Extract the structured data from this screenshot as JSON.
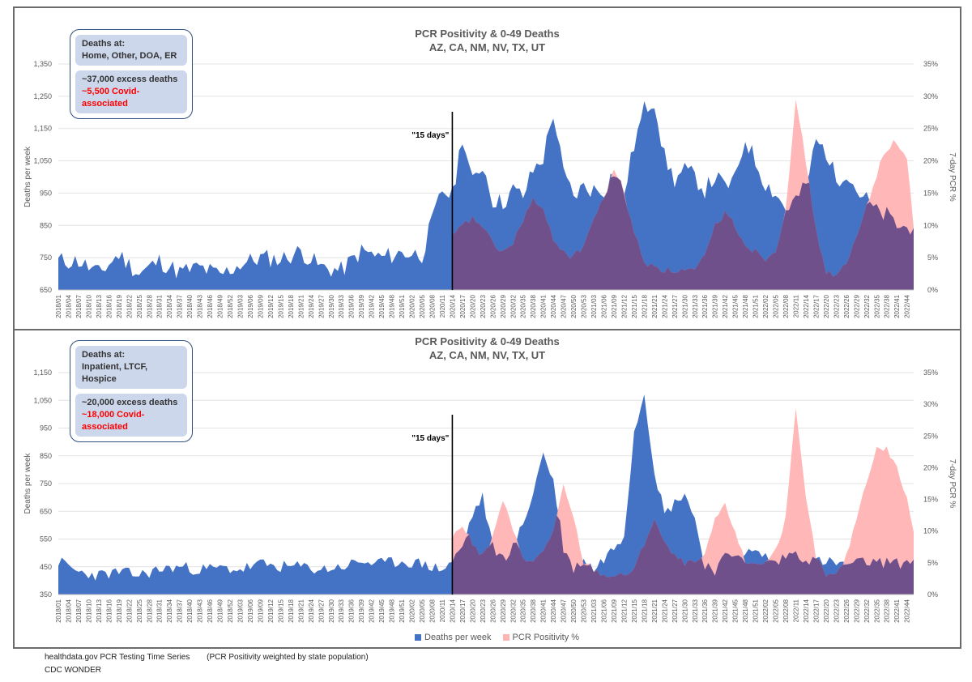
{
  "charts": [
    {
      "id": "top",
      "title": "PCR Positivity & 0-49 Deaths",
      "subtitle": "AZ, CA, NM, NV, TX, UT",
      "ylabel_left": "Deaths per week",
      "ylabel_right": "7-day PCR %",
      "annotation": "\"15 days\"",
      "info": {
        "heading": "Deaths at:",
        "places": "Home, Other, DOA, ER",
        "excess": "~37,000 excess deaths",
        "covid": "~5,500 Covid-associated"
      },
      "yticks_left": [
        "650",
        "750",
        "850",
        "950",
        "1,050",
        "1,150",
        "1,250",
        "1,350"
      ],
      "yticks_right": [
        "0%",
        "5%",
        "10%",
        "15%",
        "20%",
        "25%",
        "30%",
        "35%"
      ]
    },
    {
      "id": "bottom",
      "title": "PCR Positivity & 0-49 Deaths",
      "subtitle": "AZ, CA, NM, NV, TX, UT",
      "ylabel_left": "Deaths per week",
      "ylabel_right": "7-day PCR %",
      "annotation": "\"15 days\"",
      "info": {
        "heading": "Deaths at:",
        "places": "Inpatient, LTCF, Hospice",
        "excess": "~20,000 excess deaths",
        "covid": "~18,000 Covid-associated"
      },
      "yticks_left": [
        "350",
        "450",
        "550",
        "650",
        "750",
        "850",
        "950",
        "1,050",
        "1,150"
      ],
      "yticks_right": [
        "0%",
        "5%",
        "10%",
        "15%",
        "20%",
        "25%",
        "30%",
        "35%"
      ]
    }
  ],
  "legend": {
    "deaths": "Deaths per week",
    "pcr": "PCR Positivity %"
  },
  "footer": {
    "source1": "healthdata.gov PCR Testing Time Series",
    "note": "(PCR Positivity weighted by state population)",
    "source2": "CDC WONDER"
  },
  "colors": {
    "deaths": "#4472c4",
    "pcr": "#ff9999",
    "overlap": "#70508a"
  },
  "chart_data": [
    {
      "type": "area",
      "title": "PCR Positivity & 0-49 Deaths",
      "subtitle": "AZ, CA, NM, NV, TX, UT",
      "ylabel": "Deaths per week",
      "y2label": "7-day PCR %",
      "ylim": [
        650,
        1350
      ],
      "y2lim": [
        0,
        35
      ],
      "x_tick_labels": [
        "2018/01",
        "2018/04",
        "2018/07",
        "2018/10",
        "2018/13",
        "2018/16",
        "2018/19",
        "2018/22",
        "2018/25",
        "2018/28",
        "2018/31",
        "2018/34",
        "2018/37",
        "2018/40",
        "2018/43",
        "2018/46",
        "2018/49",
        "2018/52",
        "2019/03",
        "2019/06",
        "2019/09",
        "2019/12",
        "2019/15",
        "2019/18",
        "2019/21",
        "2019/24",
        "2019/27",
        "2019/30",
        "2019/33",
        "2019/36",
        "2019/39",
        "2019/42",
        "2019/45",
        "2019/48",
        "2019/51",
        "2020/02",
        "2020/05",
        "2020/08",
        "2020/11",
        "2020/14",
        "2020/17",
        "2020/20",
        "2020/23",
        "2020/26",
        "2020/29",
        "2020/32",
        "2020/35",
        "2020/38",
        "2020/41",
        "2020/44",
        "2020/47",
        "2020/50",
        "2020/53",
        "2021/03",
        "2021/06",
        "2021/09",
        "2021/12",
        "2021/15",
        "2021/18",
        "2021/21",
        "2021/24",
        "2021/27",
        "2021/30",
        "2021/33",
        "2021/36",
        "2021/39",
        "2021/42",
        "2021/45",
        "2021/48",
        "2021/51",
        "2022/02",
        "2022/05",
        "2022/08",
        "2022/11",
        "2022/14",
        "2022/17",
        "2022/20",
        "2022/23",
        "2022/26",
        "2022/29",
        "2022/32",
        "2022/35",
        "2022/38",
        "2022/41",
        "2022/44"
      ],
      "series": [
        {
          "name": "Deaths per week",
          "axis": "left",
          "x_index": [
            0,
            6,
            12,
            18,
            24,
            30,
            36,
            42,
            48,
            54,
            60,
            66,
            72,
            78,
            84,
            90,
            96,
            102,
            108,
            114,
            117,
            120,
            123,
            126,
            129,
            132,
            135,
            138,
            141,
            144,
            147,
            150,
            153,
            156,
            159,
            162,
            165,
            168,
            171,
            174,
            177,
            180,
            183,
            186,
            189,
            192,
            195,
            198,
            201,
            204,
            207,
            210,
            213,
            216,
            219,
            222,
            225,
            228,
            231,
            234,
            237,
            240,
            243,
            246,
            249,
            252,
            254
          ],
          "values": [
            740,
            740,
            700,
            760,
            700,
            740,
            705,
            720,
            695,
            730,
            750,
            745,
            770,
            720,
            710,
            770,
            750,
            765,
            760,
            960,
            940,
            1130,
            980,
            1040,
            930,
            920,
            960,
            940,
            1020,
            1060,
            1200,
            1010,
            940,
            970,
            960,
            960,
            1020,
            950,
            1100,
            1210,
            1240,
            1060,
            990,
            1020,
            1000,
            960,
            1000,
            970,
            990,
            1120,
            1050,
            980,
            950,
            900,
            930,
            970,
            1110,
            1080,
            990,
            1020,
            960,
            930,
            890,
            880,
            850,
            840,
            860
          ]
        },
        {
          "name": "PCR Positivity %",
          "axis": "right",
          "x_index": [
            117,
            120,
            123,
            126,
            129,
            132,
            135,
            138,
            141,
            144,
            147,
            150,
            153,
            156,
            159,
            162,
            165,
            168,
            171,
            174,
            177,
            180,
            183,
            186,
            189,
            192,
            195,
            198,
            201,
            204,
            207,
            210,
            213,
            216,
            219,
            222,
            225,
            228,
            231,
            234,
            237,
            240,
            243,
            246,
            249,
            252,
            254
          ],
          "values": [
            8,
            10,
            11,
            10,
            7,
            6,
            7,
            11,
            14,
            12,
            8,
            6,
            5,
            7,
            11,
            14,
            19,
            15,
            9,
            4,
            4,
            3,
            3,
            3,
            3,
            5,
            10,
            12,
            10,
            7,
            6,
            5,
            6,
            13,
            29,
            20,
            9,
            3,
            2,
            4,
            8,
            13,
            18,
            22,
            23,
            20,
            10
          ]
        }
      ]
    },
    {
      "type": "area",
      "title": "PCR Positivity & 0-49 Deaths",
      "subtitle": "AZ, CA, NM, NV, TX, UT",
      "ylabel": "Deaths per week",
      "y2label": "7-day PCR %",
      "ylim": [
        350,
        1150
      ],
      "y2lim": [
        0,
        35
      ],
      "x_tick_labels": [
        "2018/01",
        "2018/04",
        "2018/07",
        "2018/10",
        "2018/13",
        "2018/16",
        "2018/19",
        "2018/22",
        "2018/25",
        "2018/28",
        "2018/31",
        "2018/34",
        "2018/37",
        "2018/40",
        "2018/43",
        "2018/46",
        "2018/49",
        "2018/52",
        "2019/03",
        "2019/06",
        "2019/09",
        "2019/12",
        "2019/15",
        "2019/18",
        "2019/21",
        "2019/24",
        "2019/27",
        "2019/30",
        "2019/33",
        "2019/36",
        "2019/39",
        "2019/42",
        "2019/45",
        "2019/48",
        "2019/51",
        "2020/02",
        "2020/05",
        "2020/08",
        "2020/11",
        "2020/14",
        "2020/17",
        "2020/20",
        "2020/23",
        "2020/26",
        "2020/29",
        "2020/32",
        "2020/35",
        "2020/38",
        "2020/41",
        "2020/44",
        "2020/47",
        "2020/50",
        "2020/53",
        "2021/03",
        "2021/06",
        "2021/09",
        "2021/12",
        "2021/15",
        "2021/18",
        "2021/21",
        "2021/24",
        "2021/27",
        "2021/30",
        "2021/33",
        "2021/36",
        "2021/39",
        "2021/42",
        "2021/45",
        "2021/48",
        "2021/51",
        "2022/02",
        "2022/05",
        "2022/08",
        "2022/11",
        "2022/14",
        "2022/17",
        "2022/20",
        "2022/23",
        "2022/26",
        "2022/29",
        "2022/32",
        "2022/35",
        "2022/38",
        "2022/41",
        "2022/44"
      ],
      "series": [
        {
          "name": "Deaths per week",
          "axis": "left",
          "x_index": [
            0,
            6,
            12,
            18,
            24,
            30,
            36,
            42,
            48,
            54,
            60,
            66,
            72,
            78,
            84,
            90,
            96,
            102,
            108,
            114,
            117,
            120,
            123,
            126,
            129,
            132,
            135,
            138,
            141,
            144,
            147,
            150,
            153,
            156,
            159,
            162,
            165,
            168,
            171,
            174,
            177,
            180,
            183,
            186,
            189,
            192,
            195,
            198,
            201,
            204,
            207,
            210,
            213,
            216,
            219,
            222,
            225,
            228,
            231,
            234,
            237,
            240,
            243,
            246,
            249,
            252,
            254
          ],
          "values": [
            470,
            430,
            420,
            430,
            420,
            440,
            450,
            440,
            445,
            440,
            460,
            450,
            450,
            440,
            450,
            470,
            460,
            470,
            460,
            440,
            470,
            520,
            640,
            700,
            520,
            480,
            520,
            600,
            720,
            860,
            760,
            520,
            440,
            480,
            440,
            480,
            520,
            570,
            940,
            1080,
            800,
            640,
            680,
            720,
            620,
            460,
            440,
            480,
            500,
            500,
            500,
            490,
            460,
            490,
            500,
            480,
            470,
            470,
            460,
            460,
            460,
            470,
            460,
            470,
            460,
            470,
            470
          ]
        },
        {
          "name": "PCR Positivity %",
          "axis": "right",
          "x_index": [
            117,
            120,
            123,
            126,
            129,
            132,
            135,
            138,
            141,
            144,
            147,
            150,
            153,
            156,
            159,
            162,
            165,
            168,
            171,
            174,
            177,
            180,
            183,
            186,
            189,
            192,
            195,
            198,
            201,
            204,
            207,
            210,
            213,
            216,
            219,
            222,
            225,
            228,
            231,
            234,
            237,
            240,
            243,
            246,
            249,
            252,
            254
          ],
          "values": [
            9,
            11,
            8,
            6,
            9,
            15,
            10,
            6,
            5,
            7,
            10,
            17,
            12,
            5,
            4,
            3,
            3,
            3,
            4,
            8,
            12,
            8,
            6,
            5,
            5,
            6,
            12,
            14,
            10,
            5,
            5,
            5,
            7,
            12,
            29,
            15,
            6,
            3,
            3,
            6,
            12,
            18,
            23,
            23,
            20,
            15,
            10
          ]
        }
      ]
    }
  ]
}
